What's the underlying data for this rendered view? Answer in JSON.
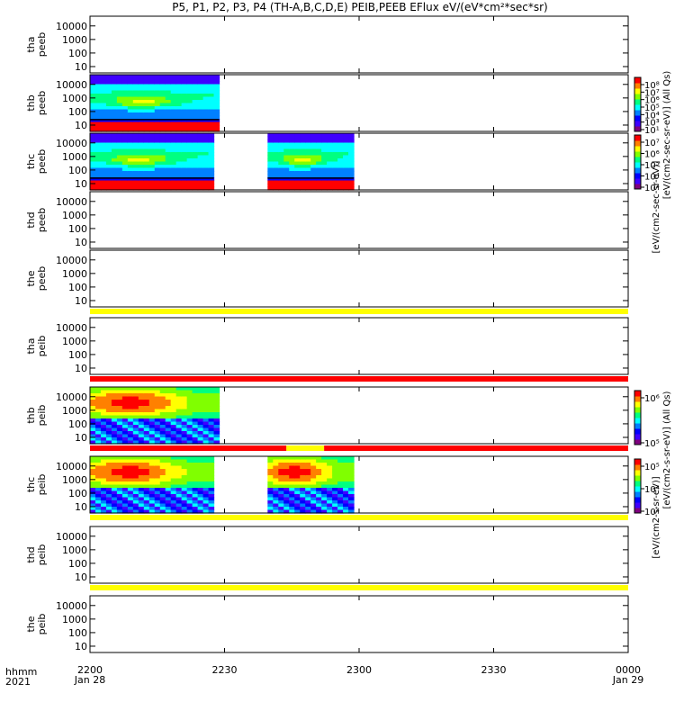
{
  "title": "P5, P1, P2, P3, P4 (TH-A,B,C,D,E) PEIB,PEEB EFlux eV/(eV*cm²*sec*sr)",
  "footer": {
    "row1": "hhmm",
    "row2": "2021"
  },
  "colors": {
    "bar_yellow": "#ffff00",
    "bar_red": "#ff0000",
    "colormap": [
      "#7f007f",
      "#3f00ff",
      "#0000ff",
      "#0080ff",
      "#00ffff",
      "#00ff80",
      "#80ff00",
      "#ffff00",
      "#ff8000",
      "#ff0000"
    ]
  },
  "chart_data": {
    "type": "heatmap",
    "x_ticks": [
      {
        "major": "2200",
        "minor": "Jan 28"
      },
      {
        "major": "2230",
        "minor": ""
      },
      {
        "major": "2300",
        "minor": ""
      },
      {
        "major": "2330",
        "minor": ""
      },
      {
        "major": "0000",
        "minor": "Jan 29"
      }
    ],
    "y_ticks": [
      "10",
      "100",
      "1000",
      "10000"
    ],
    "y_scale": "log",
    "panels": [
      {
        "label": "tha peeb",
        "data_segments": []
      },
      {
        "label": "thb peeb",
        "data_segments": [
          [
            0,
            0.24
          ]
        ],
        "colorbar": "electron-top"
      },
      {
        "label": "thc peeb",
        "data_segments": [
          [
            0,
            0.23
          ],
          [
            0.33,
            0.49
          ]
        ],
        "colorbar": "electron-bottom"
      },
      {
        "label": "thd peeb",
        "data_segments": []
      },
      {
        "label": "the peeb",
        "data_segments": [],
        "bar_below": "yellow"
      },
      {
        "label": "tha peib",
        "data_segments": [],
        "bar_below": "red"
      },
      {
        "label": "thb peib",
        "data_segments": [
          [
            0,
            0.24
          ]
        ],
        "bar_below": "red-yellow-red",
        "colorbar": "ion-top"
      },
      {
        "label": "thc peib",
        "data_segments": [
          [
            0,
            0.23
          ],
          [
            0.33,
            0.49
          ]
        ],
        "bar_below": "yellow",
        "colorbar": "ion-bottom"
      },
      {
        "label": "thd peib",
        "data_segments": [],
        "bar_below": "yellow"
      },
      {
        "label": "the peib",
        "data_segments": []
      }
    ],
    "colorbars": {
      "electron": {
        "title": "[eV/(cm2-sec-sr-eV)] (All Qs)",
        "title2": "[eV/(cm2-sec-sr-eV)]",
        "ticks_top": [
          "10⁸",
          "10⁷",
          "10⁶",
          "10⁵",
          "10⁴",
          "10³",
          "10¹"
        ],
        "ticks_bottom": [
          "10⁷",
          "10⁶",
          "10⁵",
          "10⁴",
          "10³"
        ]
      },
      "ion": {
        "title": "[eV/(cm2-s-sr-eV)] (All Qs)",
        "title2": "[eV/(cm2-s-sr-eV)]",
        "ticks_top": [
          "10⁶",
          "10⁵"
        ],
        "ticks_bottom": [
          "10⁵",
          "10⁴",
          "10³"
        ]
      }
    }
  }
}
